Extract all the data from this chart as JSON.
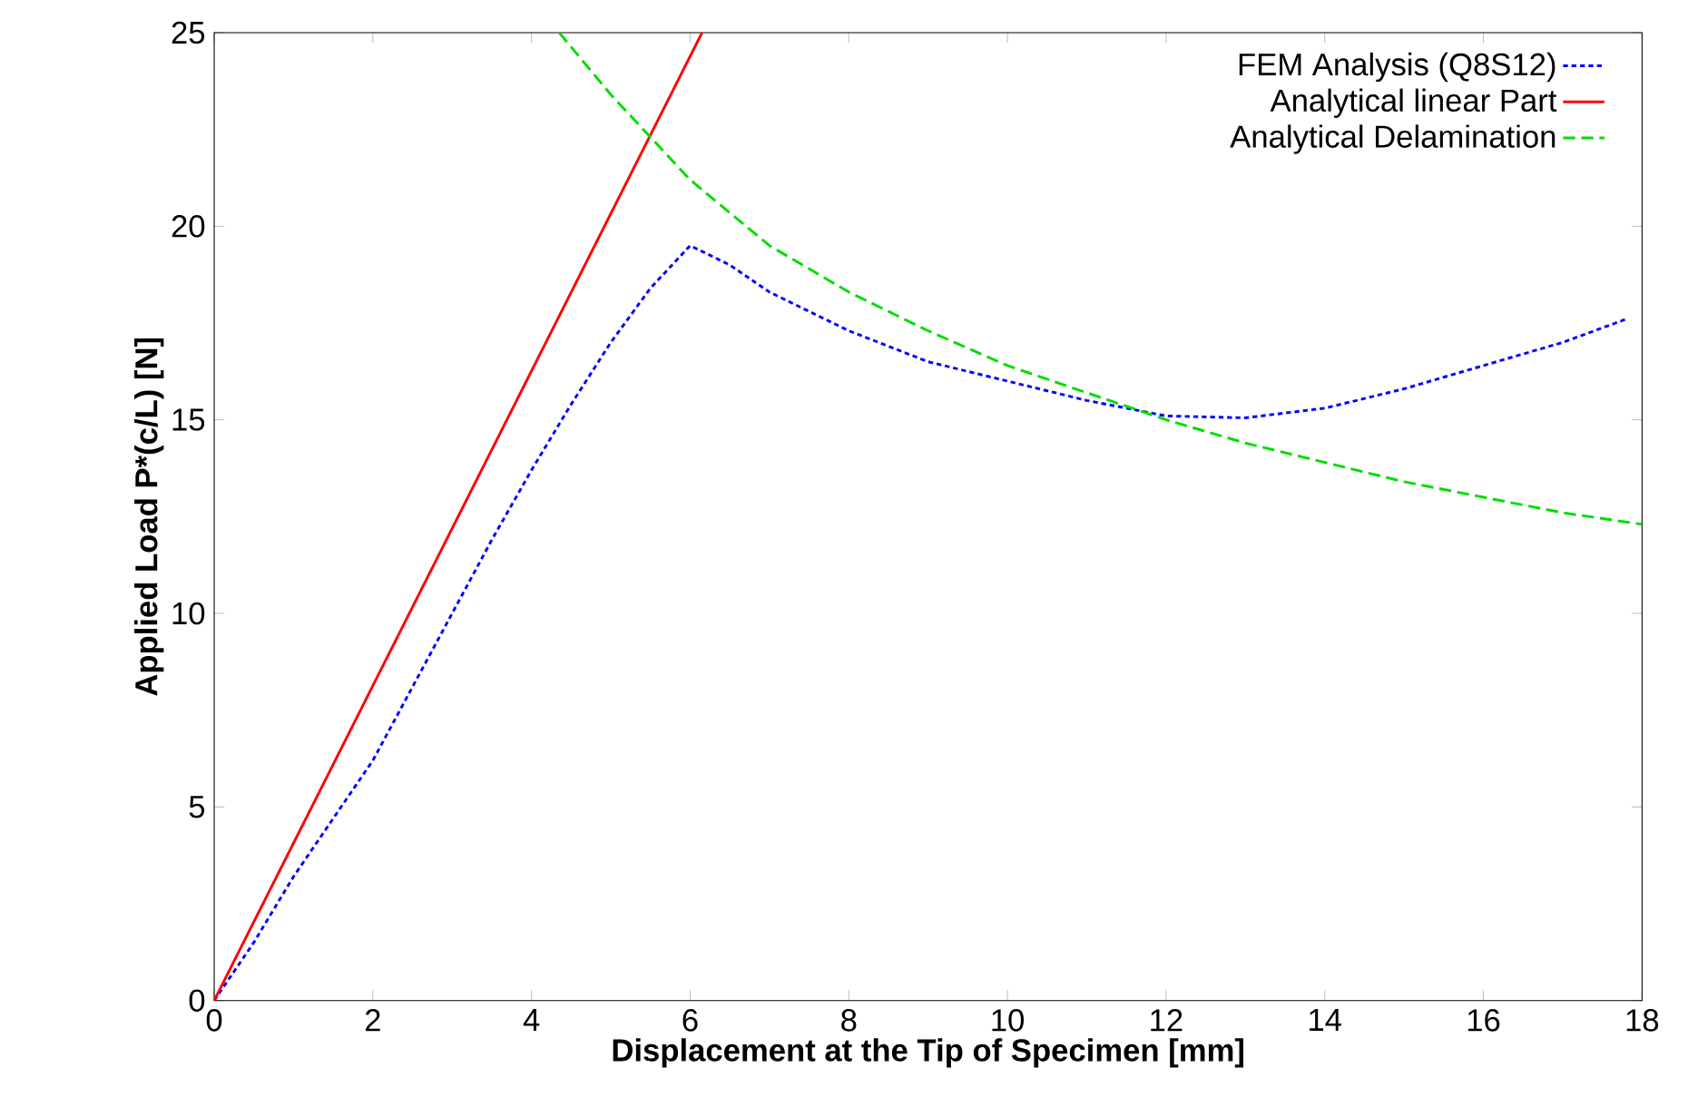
{
  "chart_data": {
    "type": "line",
    "xlabel": "Displacement at the Tip of Specimen [mm]",
    "ylabel": "Applied Load P*(c/L) [N]",
    "xlim": [
      0,
      18
    ],
    "ylim": [
      0,
      25
    ],
    "xticks": [
      0,
      2,
      4,
      6,
      8,
      10,
      12,
      14,
      16,
      18
    ],
    "yticks": [
      0,
      5,
      10,
      15,
      20,
      25
    ],
    "legend": "top right",
    "series": [
      {
        "name": "FEM Analysis (Q8S12)",
        "color": "#0000ff",
        "line_style": "dotted",
        "x": [
          0,
          0.5,
          1,
          1.5,
          2,
          2.5,
          3,
          3.5,
          4,
          4.5,
          5,
          5.5,
          6,
          6.5,
          7,
          8,
          9,
          10,
          11,
          12,
          13,
          14,
          15,
          16,
          17,
          17.8
        ],
        "values": [
          0,
          1.5,
          3.2,
          4.7,
          6.2,
          8.1,
          10.0,
          11.9,
          13.7,
          15.4,
          17.0,
          18.4,
          19.5,
          19.0,
          18.3,
          17.3,
          16.5,
          16.0,
          15.5,
          15.1,
          15.05,
          15.3,
          15.8,
          16.4,
          17.0,
          17.6
        ]
      },
      {
        "name": "Analytical linear Part",
        "color": "#ff0000",
        "line_style": "solid",
        "x": [
          0,
          6.15
        ],
        "values": [
          0,
          25
        ]
      },
      {
        "name": "Analytical Delamination",
        "color": "#00dd00",
        "line_style": "dashed",
        "x": [
          4.35,
          5,
          6,
          7,
          8,
          9,
          10,
          11,
          12,
          13,
          14,
          15,
          16,
          17,
          18
        ],
        "values": [
          25,
          23.4,
          21.2,
          19.5,
          18.3,
          17.3,
          16.4,
          15.7,
          15.0,
          14.4,
          13.9,
          13.4,
          13.0,
          12.6,
          12.3
        ]
      }
    ]
  }
}
